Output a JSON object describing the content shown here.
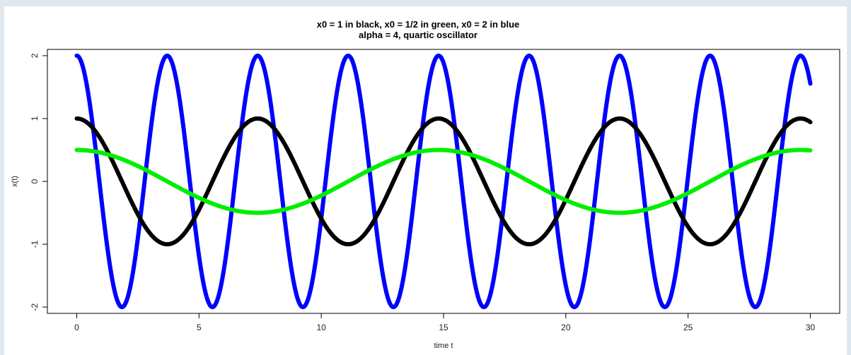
{
  "chart_data": {
    "type": "line",
    "title": "x0 = 1 in black,   x0 = 1/2 in green,   x0 = 2 in blue",
    "subtitle": "alpha = 4,  quartic oscillator",
    "xlabel": "time t",
    "ylabel": "x(t)",
    "xlim": [
      -1.2,
      31.2
    ],
    "ylim": [
      -2.1,
      2.1
    ],
    "xticks": [
      0,
      5,
      10,
      15,
      20,
      25,
      30
    ],
    "yticks": [
      -2,
      -1,
      0,
      1,
      2
    ],
    "grid": false,
    "legend": "none",
    "series": [
      {
        "x0": 2,
        "amplitude": 2,
        "period": 3.7,
        "t_end": 30,
        "color": "#0000ff"
      },
      {
        "x0": 1,
        "amplitude": 1,
        "period": 7.4,
        "t_end": 30,
        "color": "#000000"
      },
      {
        "x0": 0.5,
        "amplitude": 0.5,
        "period": 14.8,
        "t_end": 30,
        "color": "#00ee00"
      }
    ]
  }
}
